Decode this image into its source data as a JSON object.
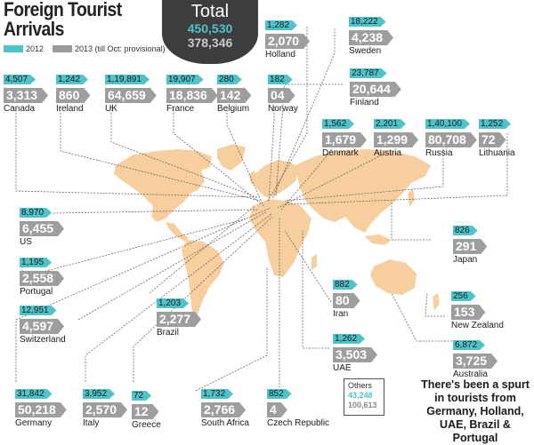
{
  "header": {
    "title_line1": "Foreign Tourist",
    "title_line2": "Arrivals",
    "legend_2012": "2012",
    "legend_2013": "2013 (till Oct: provisional)"
  },
  "total": {
    "label": "Total",
    "v2012": "450,530",
    "v2013": "378,346"
  },
  "countries": [
    {
      "name": "Holland",
      "v2012": "1,282",
      "v2013": "2,070"
    },
    {
      "name": "Sweden",
      "v2012": "18,222",
      "v2013": "4,238"
    },
    {
      "name": "Canada",
      "v2012": "4,507",
      "v2013": "3,313"
    },
    {
      "name": "Ireland",
      "v2012": "1,242",
      "v2013": "860"
    },
    {
      "name": "UK",
      "v2012": "1,19,891",
      "v2013": "64,659"
    },
    {
      "name": "France",
      "v2012": "19,907",
      "v2013": "18,836"
    },
    {
      "name": "Belgium",
      "v2012": "280",
      "v2013": "142"
    },
    {
      "name": "Norway",
      "v2012": "182",
      "v2013": "04"
    },
    {
      "name": "Finland",
      "v2012": "23,787",
      "v2013": "20,644"
    },
    {
      "name": "Denmark",
      "v2012": "1,562",
      "v2013": "1,679"
    },
    {
      "name": "Austria",
      "v2012": "2,201",
      "v2013": "1,299"
    },
    {
      "name": "Russia",
      "v2012": "1,40,100",
      "v2013": "80,708"
    },
    {
      "name": "Lithuania",
      "v2012": "1,252",
      "v2013": "72"
    },
    {
      "name": "US",
      "v2012": "8,970",
      "v2013": "6,455"
    },
    {
      "name": "Japan",
      "v2012": "826",
      "v2013": "291"
    },
    {
      "name": "Portugal",
      "v2012": "1,195",
      "v2013": "2,558"
    },
    {
      "name": "Iran",
      "v2012": "882",
      "v2013": "80"
    },
    {
      "name": "Switzerland",
      "v2012": "12,951",
      "v2013": "4,597"
    },
    {
      "name": "Brazil",
      "v2012": "1,203",
      "v2013": "2,277"
    },
    {
      "name": "New Zealand",
      "v2012": "256",
      "v2013": "153"
    },
    {
      "name": "UAE",
      "v2012": "1,262",
      "v2013": "3,503"
    },
    {
      "name": "Australia",
      "v2012": "6,872",
      "v2013": "3,725"
    },
    {
      "name": "Germany",
      "v2012": "31,842",
      "v2013": "50,218"
    },
    {
      "name": "Italy",
      "v2012": "3,952",
      "v2013": "2,570"
    },
    {
      "name": "Greece",
      "v2012": "72",
      "v2013": "12"
    },
    {
      "name": "South Africa",
      "v2012": "1,732",
      "v2013": "2,766"
    },
    {
      "name": "Czech Republic",
      "v2012": "852",
      "v2013": "4"
    }
  ],
  "others": {
    "label": "Others",
    "v2012": "43,248",
    "v2013": "100,613"
  },
  "note": "There's been a spurt in  tourists from Germany, Holland, UAE, Brazil & Portugal",
  "colors": {
    "teal_2012": "#4ec3c9",
    "grey_2013": "#9e9e9e",
    "map": "#f7cf9f",
    "total_bg": "#3d3d3d"
  },
  "chart_data": {
    "type": "table",
    "title": "Foreign Tourist Arrivals",
    "columns": [
      "2012",
      "2013 (till Oct: provisional)"
    ],
    "rows": [
      {
        "country": "Holland",
        "2012": 1282,
        "2013": 2070
      },
      {
        "country": "Sweden",
        "2012": 18222,
        "2013": 4238
      },
      {
        "country": "Canada",
        "2012": 4507,
        "2013": 3313
      },
      {
        "country": "Ireland",
        "2012": 1242,
        "2013": 860
      },
      {
        "country": "UK",
        "2012": 119891,
        "2013": 64659
      },
      {
        "country": "France",
        "2012": 19907,
        "2013": 18836
      },
      {
        "country": "Belgium",
        "2012": 280,
        "2013": 142
      },
      {
        "country": "Norway",
        "2012": 182,
        "2013": 4
      },
      {
        "country": "Finland",
        "2012": 23787,
        "2013": 20644
      },
      {
        "country": "Denmark",
        "2012": 1562,
        "2013": 1679
      },
      {
        "country": "Austria",
        "2012": 2201,
        "2013": 1299
      },
      {
        "country": "Russia",
        "2012": 140100,
        "2013": 80708
      },
      {
        "country": "Lithuania",
        "2012": 1252,
        "2013": 72
      },
      {
        "country": "US",
        "2012": 8970,
        "2013": 6455
      },
      {
        "country": "Japan",
        "2012": 826,
        "2013": 291
      },
      {
        "country": "Portugal",
        "2012": 1195,
        "2013": 2558
      },
      {
        "country": "Iran",
        "2012": 882,
        "2013": 80
      },
      {
        "country": "Switzerland",
        "2012": 12951,
        "2013": 4597
      },
      {
        "country": "Brazil",
        "2012": 1203,
        "2013": 2277
      },
      {
        "country": "New Zealand",
        "2012": 256,
        "2013": 153
      },
      {
        "country": "UAE",
        "2012": 1262,
        "2013": 3503
      },
      {
        "country": "Australia",
        "2012": 6872,
        "2013": 3725
      },
      {
        "country": "Germany",
        "2012": 31842,
        "2013": 50218
      },
      {
        "country": "Italy",
        "2012": 3952,
        "2013": 2570
      },
      {
        "country": "Greece",
        "2012": 72,
        "2013": 12
      },
      {
        "country": "South Africa",
        "2012": 1732,
        "2013": 2766
      },
      {
        "country": "Czech Republic",
        "2012": 852,
        "2013": 4
      },
      {
        "country": "Others",
        "2012": 43248,
        "2013": 100613
      }
    ],
    "totals": {
      "2012": 450530,
      "2013": 378346
    }
  }
}
